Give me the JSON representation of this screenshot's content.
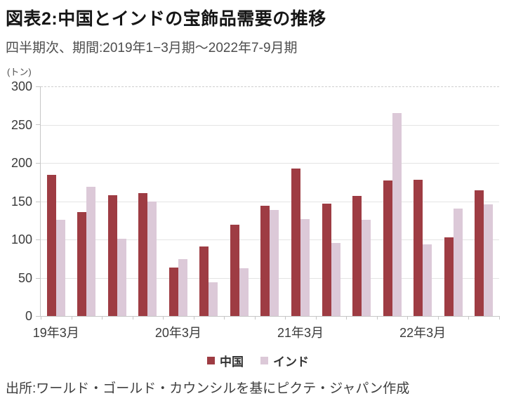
{
  "title": "図表2:中国とインドの宝飾品需要の推移",
  "subtitle": "四半期次、期間:2019年1−3月期〜2022年7-9月期",
  "source": "出所:ワールド・ゴールド・カウンシルを基にピクテ・ジャパン作成",
  "chart_data": {
    "type": "bar",
    "title": "図表2:中国とインドの宝飾品需要の推移",
    "subtitle": "四半期次、期間:2019年1−3月期〜2022年7-9月期",
    "ylabel": "(トン)",
    "ylim": [
      0,
      300
    ],
    "y_ticks": [
      300,
      250,
      200,
      150,
      100,
      50,
      0
    ],
    "grid": true,
    "legend_position": "bottom",
    "categories": [
      "2019Q1",
      "2019Q2",
      "2019Q3",
      "2019Q4",
      "2020Q1",
      "2020Q2",
      "2020Q3",
      "2020Q4",
      "2021Q1",
      "2021Q2",
      "2021Q3",
      "2021Q4",
      "2022Q1",
      "2022Q2",
      "2022Q3"
    ],
    "x_tick_labels": [
      {
        "index": 0,
        "label": "19年3月"
      },
      {
        "index": 4,
        "label": "20年3月"
      },
      {
        "index": 8,
        "label": "21年3月"
      },
      {
        "index": 12,
        "label": "22年3月"
      }
    ],
    "series": [
      {
        "name": "中国",
        "color": "#9e3c43",
        "values": [
          184,
          136,
          158,
          161,
          63,
          91,
          119,
          144,
          193,
          147,
          157,
          177,
          178,
          103,
          164
        ]
      },
      {
        "name": "インド",
        "color": "#dcc9d8",
        "values": [
          126,
          169,
          101,
          150,
          74,
          44,
          62,
          139,
          127,
          95,
          126,
          265,
          94,
          140,
          146
        ]
      }
    ]
  }
}
